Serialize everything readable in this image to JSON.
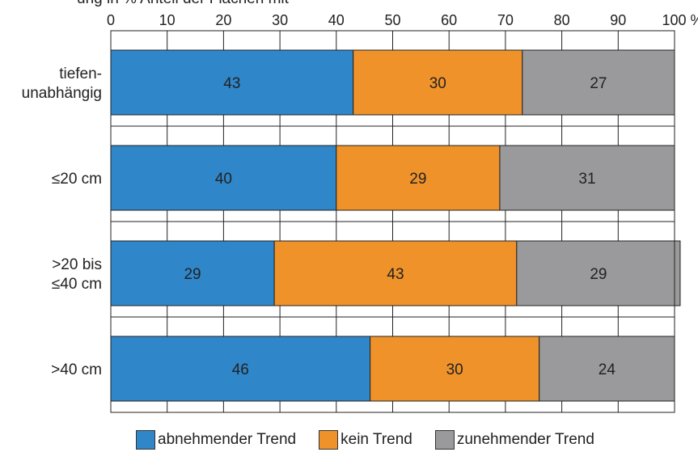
{
  "chart_data": {
    "type": "bar",
    "orientation": "horizontal",
    "stacked": true,
    "title": "",
    "xlabel": "",
    "ylabel": "",
    "xlim": [
      0,
      100
    ],
    "x_ticks": [
      "0",
      "10",
      "20",
      "30",
      "40",
      "50",
      "60",
      "70",
      "80",
      "90",
      "100 %"
    ],
    "grid": true,
    "legend_position": "bottom",
    "categories": [
      [
        "tiefen-",
        "unabhängig"
      ],
      [
        "≤20 cm"
      ],
      [
        ">20 bis",
        "≤40 cm"
      ],
      [
        ">40 cm"
      ]
    ],
    "series": [
      {
        "name": "abnehmender Trend",
        "color": "#2f86c9",
        "values": [
          43,
          40,
          29,
          46
        ]
      },
      {
        "name": "kein Trend",
        "color": "#ef922a",
        "values": [
          30,
          29,
          43,
          30
        ]
      },
      {
        "name": "zunehmender Trend",
        "color": "#9a999b",
        "values": [
          27,
          31,
          29,
          24
        ]
      }
    ],
    "partial_top_text": "ung  in %   Anteil der Flächen mit"
  }
}
